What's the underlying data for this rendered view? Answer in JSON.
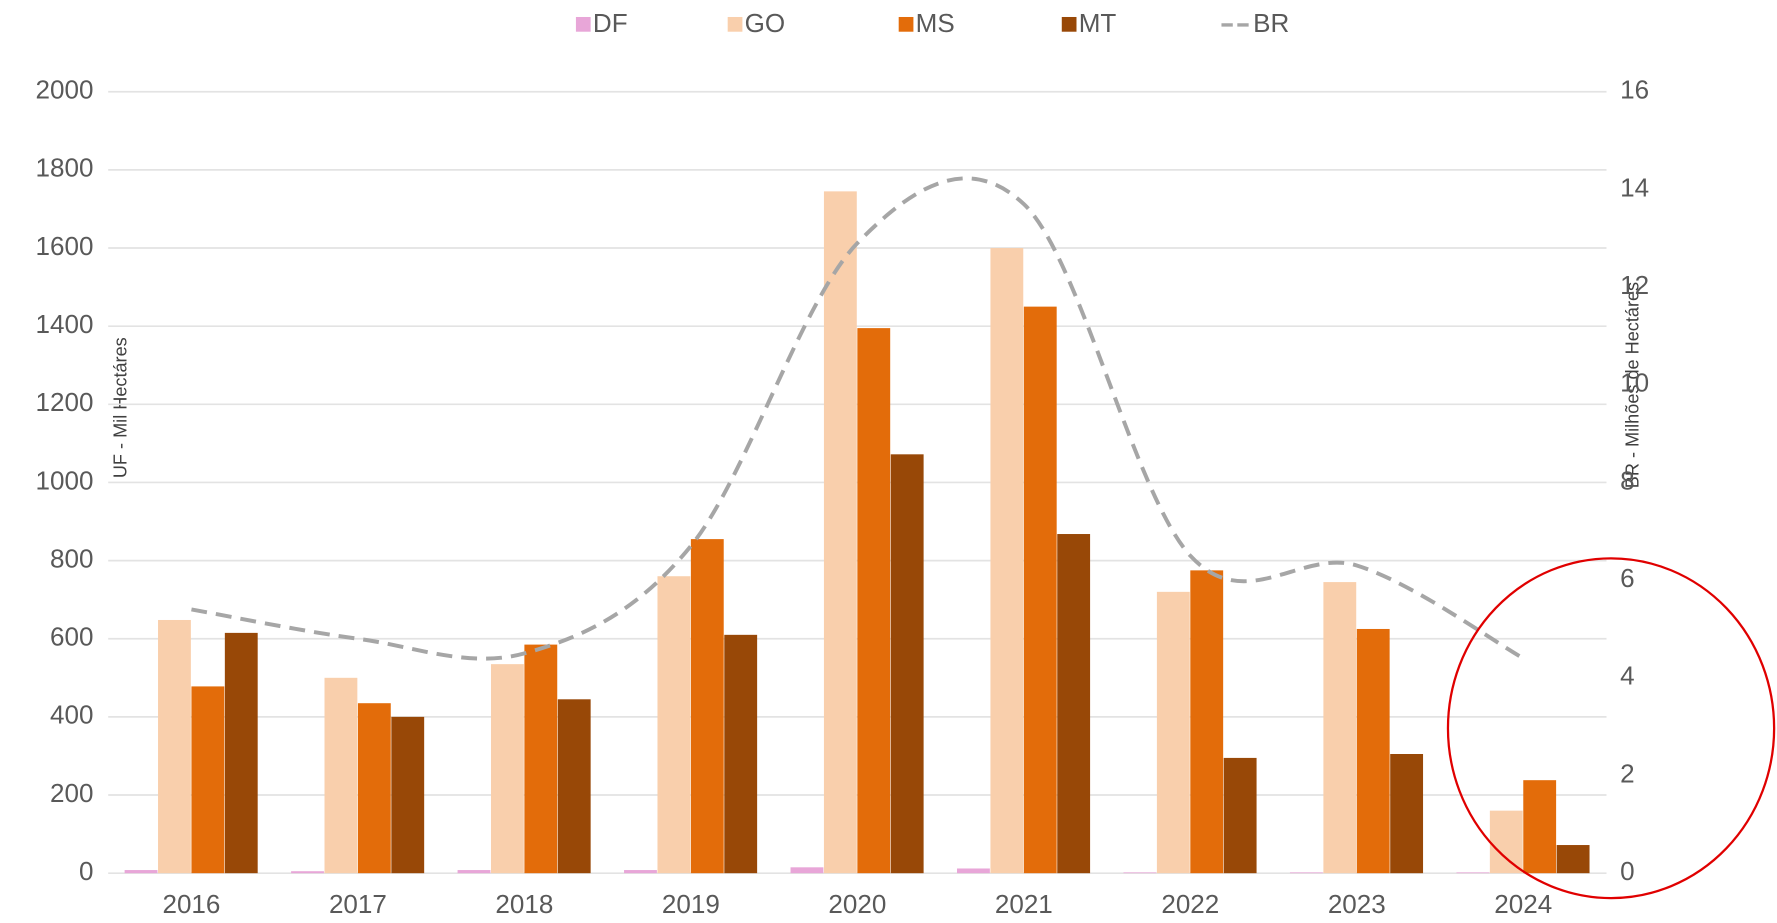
{
  "chart_data": {
    "type": "bar",
    "categories": [
      "2016",
      "2017",
      "2018",
      "2019",
      "2020",
      "2021",
      "2022",
      "2023",
      "2024"
    ],
    "series": [
      {
        "name": "DF",
        "color": "#e8a6d8",
        "values": [
          8,
          5,
          8,
          8,
          15,
          12,
          2,
          2,
          2
        ]
      },
      {
        "name": "GO",
        "color": "#f9cfac",
        "values": [
          648,
          500,
          535,
          760,
          1745,
          1600,
          720,
          745,
          160
        ]
      },
      {
        "name": "MS",
        "color": "#e36c0a",
        "values": [
          478,
          435,
          585,
          855,
          1395,
          1450,
          775,
          625,
          238
        ]
      },
      {
        "name": "MT",
        "color": "#984807",
        "values": [
          615,
          400,
          445,
          610,
          1072,
          868,
          295,
          305,
          72
        ]
      },
      {
        "name": "BR",
        "color": "#a6a6a6",
        "type": "line",
        "axis": "y2",
        "values": [
          5.4,
          4.8,
          4.5,
          6.7,
          12.9,
          13.7,
          6.5,
          6.3,
          4.4
        ]
      }
    ],
    "y_label": "UF - Mil Hectáres",
    "y2_label": "BR - Milhões de Hectáres",
    "ylim": [
      0,
      2000
    ],
    "yticks": [
      0,
      200,
      400,
      600,
      800,
      1000,
      1200,
      1400,
      1600,
      1800,
      2000
    ],
    "y2lim": [
      0,
      16
    ],
    "y2ticks": [
      0,
      2,
      4,
      6,
      8,
      10,
      12,
      14,
      16
    ],
    "grid": true,
    "legend": "top"
  }
}
